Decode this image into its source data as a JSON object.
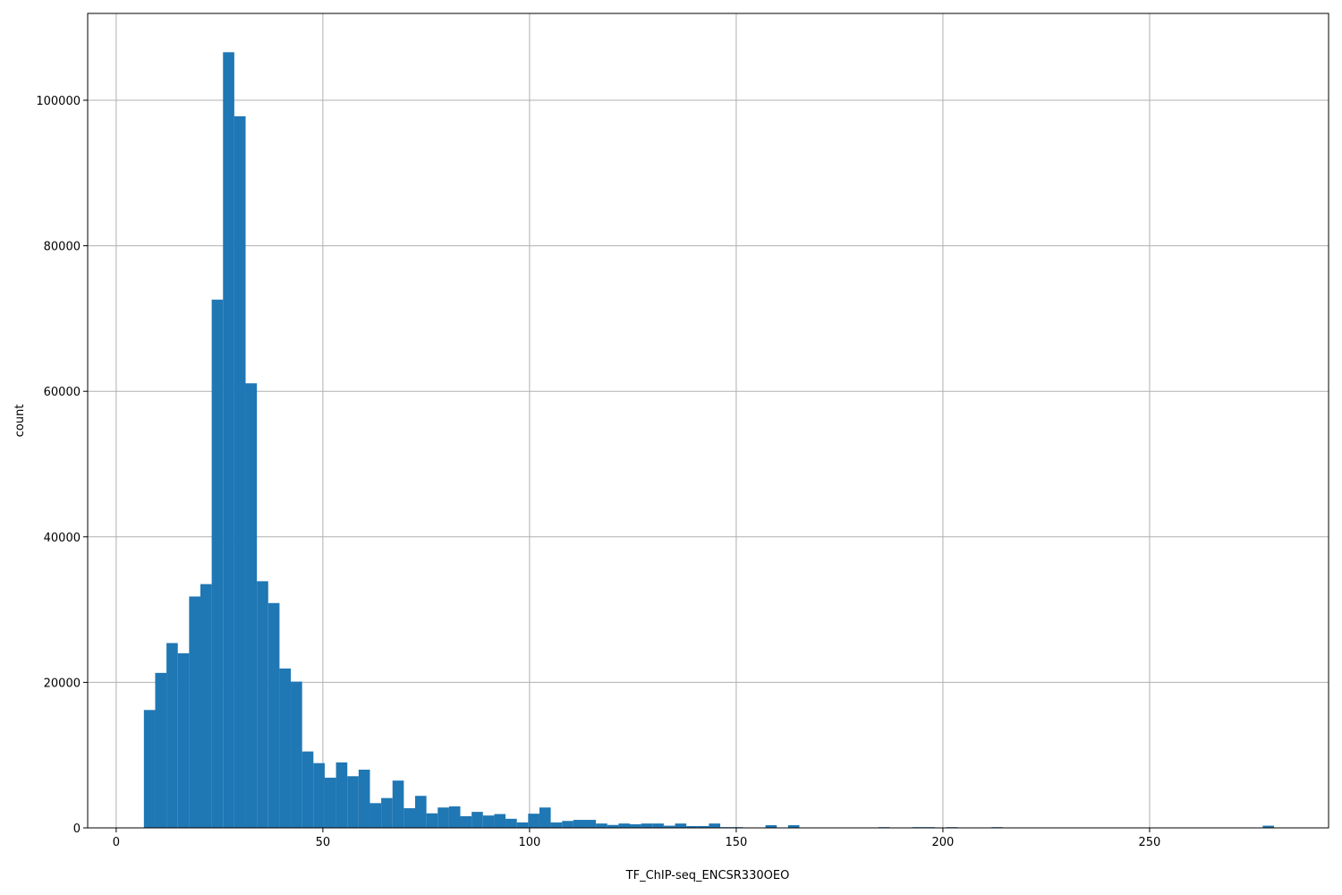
{
  "chart_data": {
    "type": "bar",
    "subtype": "histogram",
    "title": "",
    "xlabel": "TF_ChIP-seq_ENCSR330OEO",
    "ylabel": "count",
    "xlim": [
      -6.9,
      293.3
    ],
    "ylim": [
      0,
      111930
    ],
    "grid": true,
    "bar_color": "#1f77b4",
    "bin_start": 6.7,
    "bin_width": 2.734,
    "xticks": [
      "0",
      "50",
      "100",
      "150",
      "200",
      "250"
    ],
    "yticks": [
      "0",
      "20000",
      "40000",
      "60000",
      "80000",
      "100000"
    ],
    "values": [
      16200,
      21300,
      25400,
      24000,
      31800,
      33500,
      72600,
      106600,
      97800,
      61100,
      33900,
      30900,
      21900,
      20100,
      10500,
      8900,
      6900,
      9000,
      7100,
      8000,
      3400,
      4100,
      6500,
      2700,
      4400,
      2000,
      2800,
      2950,
      1600,
      2200,
      1700,
      1900,
      1250,
      750,
      1950,
      2800,
      750,
      950,
      1100,
      1100,
      600,
      400,
      600,
      500,
      600,
      600,
      300,
      600,
      250,
      250,
      600,
      100,
      100,
      0,
      0,
      370,
      0,
      370,
      0,
      0,
      0,
      0,
      0,
      0,
      0,
      100,
      0,
      0,
      100,
      100,
      0,
      100,
      0,
      0,
      0,
      100,
      0,
      0,
      0,
      0,
      0,
      0,
      0,
      0,
      0,
      0,
      0,
      0,
      0,
      0,
      0,
      0,
      0,
      0,
      0,
      0,
      0,
      0,
      0,
      300
    ]
  }
}
